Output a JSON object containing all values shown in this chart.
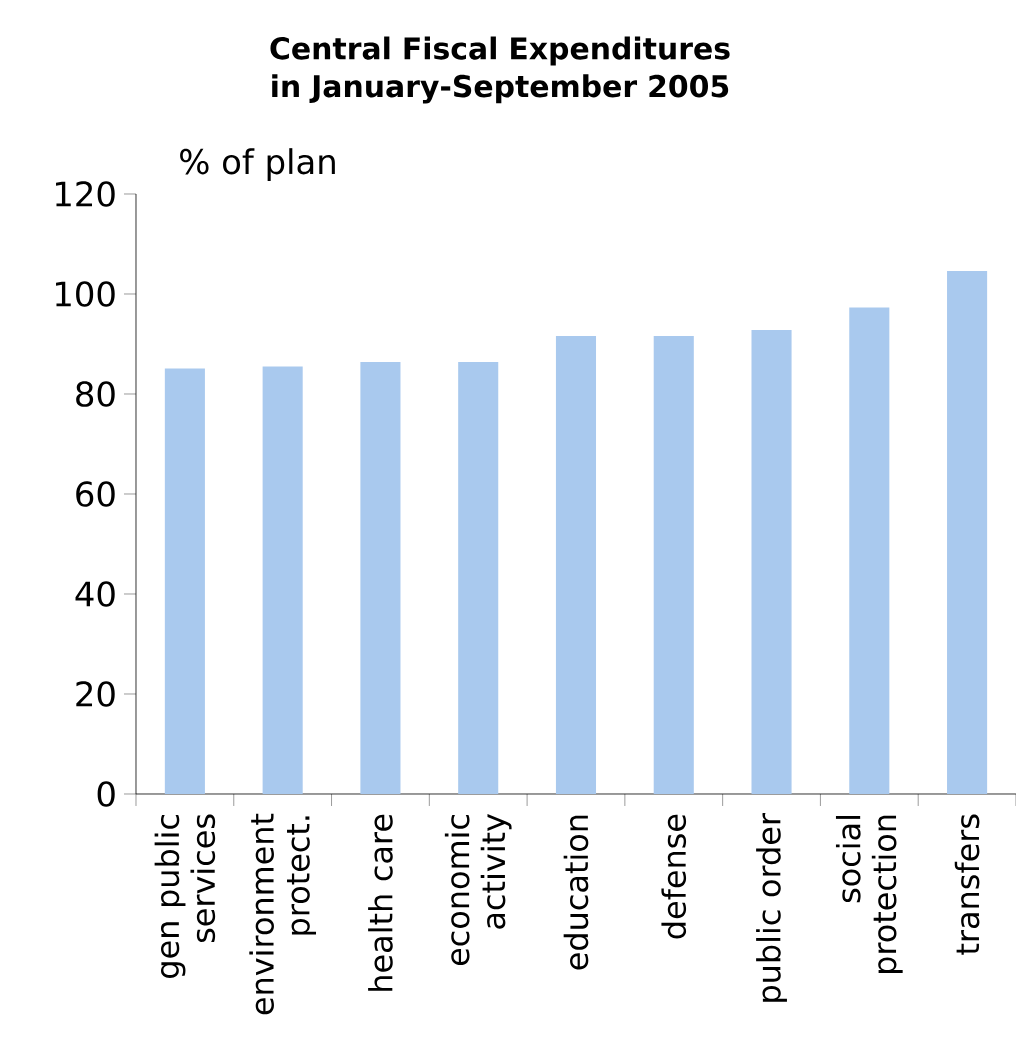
{
  "chart_data": {
    "type": "bar",
    "title": "Central Fiscal Expenditures in January-September 2005",
    "ylabel": "% of plan",
    "categories": [
      "gen public services",
      "environment protect.",
      "health care",
      "economic activity",
      "education",
      "defense",
      "public order",
      "social protection",
      "transfers"
    ],
    "values": [
      85.1,
      85.5,
      86.4,
      86.4,
      91.6,
      91.6,
      92.8,
      97.3,
      104.6
    ],
    "color": "#a9c9ee",
    "ylim": [
      0,
      120
    ],
    "yticks": [
      0,
      20,
      40,
      60,
      80,
      100,
      120
    ]
  }
}
